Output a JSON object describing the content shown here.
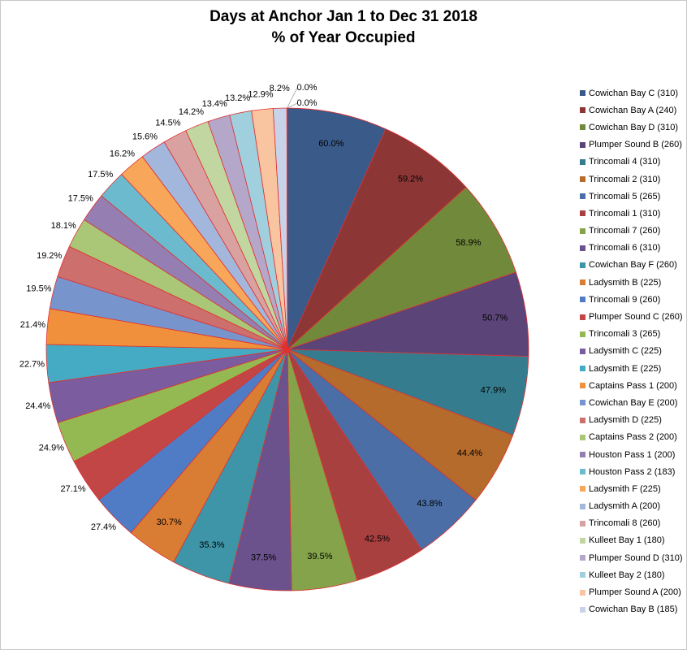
{
  "chart_data": {
    "type": "pie",
    "title": "Days at Anchor Jan 1 to Dec 31 2018",
    "subtitle": "% of Year Occupied",
    "legend_position": "right",
    "slices": [
      {
        "name": "Cowichan Bay C (310)",
        "value": 60.0,
        "label": "60.0%",
        "color": "#3a5a8a"
      },
      {
        "name": "Cowichan Bay A (240)",
        "value": 59.2,
        "label": "59.2%",
        "color": "#8c3636"
      },
      {
        "name": "Cowichan Bay D (310)",
        "value": 58.9,
        "label": "58.9%",
        "color": "#71893b"
      },
      {
        "name": "Plumper Sound B (260)",
        "value": 50.7,
        "label": "50.7%",
        "color": "#5b4578"
      },
      {
        "name": "Trincomali 4 (310)",
        "value": 47.9,
        "label": "47.9%",
        "color": "#357d8e"
      },
      {
        "name": "Trincomali 2 (310)",
        "value": 44.4,
        "label": "44.4%",
        "color": "#b56b2c"
      },
      {
        "name": "Trincomali 5 (265)",
        "value": 43.8,
        "label": "43.8%",
        "color": "#4a6ea5"
      },
      {
        "name": "Trincomali 1 (310)",
        "value": 42.5,
        "label": "42.5%",
        "color": "#a84040"
      },
      {
        "name": "Trincomali 7 (260)",
        "value": 39.5,
        "label": "39.5%",
        "color": "#84a34a"
      },
      {
        "name": "Trincomali 6 (310)",
        "value": 37.5,
        "label": "37.5%",
        "color": "#6b528c"
      },
      {
        "name": "Cowichan Bay F (260)",
        "value": 35.3,
        "label": "35.3%",
        "color": "#3e95a8"
      },
      {
        "name": "Ladysmith B (225)",
        "value": 30.7,
        "label": "30.7%",
        "color": "#d97d34"
      },
      {
        "name": "Trincomali 9 (260)",
        "value": 27.4,
        "label": "27.4%",
        "color": "#4f7cc4"
      },
      {
        "name": "Plumper Sound C (260)",
        "value": 27.1,
        "label": "27.1%",
        "color": "#c24646"
      },
      {
        "name": "Trincomali 3 (265)",
        "value": 24.9,
        "label": "24.9%",
        "color": "#95b952"
      },
      {
        "name": "Ladysmith C (225)",
        "value": 24.4,
        "label": "24.4%",
        "color": "#7b5d9f"
      },
      {
        "name": "Ladysmith E (225)",
        "value": 22.7,
        "label": "22.7%",
        "color": "#45abc4"
      },
      {
        "name": "Captains Pass 1 (200)",
        "value": 21.4,
        "label": "21.4%",
        "color": "#f08f3c"
      },
      {
        "name": "Cowichan Bay E (200)",
        "value": 19.5,
        "label": "19.5%",
        "color": "#7894cc"
      },
      {
        "name": "Ladysmith D (225)",
        "value": 19.2,
        "label": "19.2%",
        "color": "#cc6f6d"
      },
      {
        "name": "Captains Pass 2 (200)",
        "value": 18.1,
        "label": "18.1%",
        "color": "#a9c776"
      },
      {
        "name": "Houston Pass 1 (200)",
        "value": 17.5,
        "label": "17.5%",
        "color": "#957eb2"
      },
      {
        "name": "Houston Pass 2 (183)",
        "value": 17.5,
        "label": "17.5%",
        "color": "#6bbacd"
      },
      {
        "name": "Ladysmith F (225)",
        "value": 16.2,
        "label": "16.2%",
        "color": "#f7a65a"
      },
      {
        "name": "Ladysmith A (200)",
        "value": 15.6,
        "label": "15.6%",
        "color": "#a3b6dc"
      },
      {
        "name": "Trincomali 8 (260)",
        "value": 14.5,
        "label": "14.5%",
        "color": "#d9a1a0"
      },
      {
        "name": "Kulleet Bay 1 (180)",
        "value": 14.2,
        "label": "14.2%",
        "color": "#c2d6a2"
      },
      {
        "name": "Plumper Sound D (310)",
        "value": 13.4,
        "label": "13.4%",
        "color": "#b5a7c9"
      },
      {
        "name": "Kulleet Bay 2 (180)",
        "value": 13.2,
        "label": "13.2%",
        "color": "#a0d0dd"
      },
      {
        "name": "Plumper Sound A (200)",
        "value": 12.9,
        "label": "12.9%",
        "color": "#f9c4a0"
      },
      {
        "name": "Cowichan Bay B (185)",
        "value": 8.2,
        "label": "8.2%",
        "color": "#c8d2e8"
      },
      {
        "name": "",
        "value": 0.0,
        "label": "0.0%",
        "color": "#e8c3c2"
      },
      {
        "name": "",
        "value": 0.0,
        "label": "0.0%",
        "color": "#d8e5c5"
      }
    ],
    "outline_color": "#e03030"
  }
}
